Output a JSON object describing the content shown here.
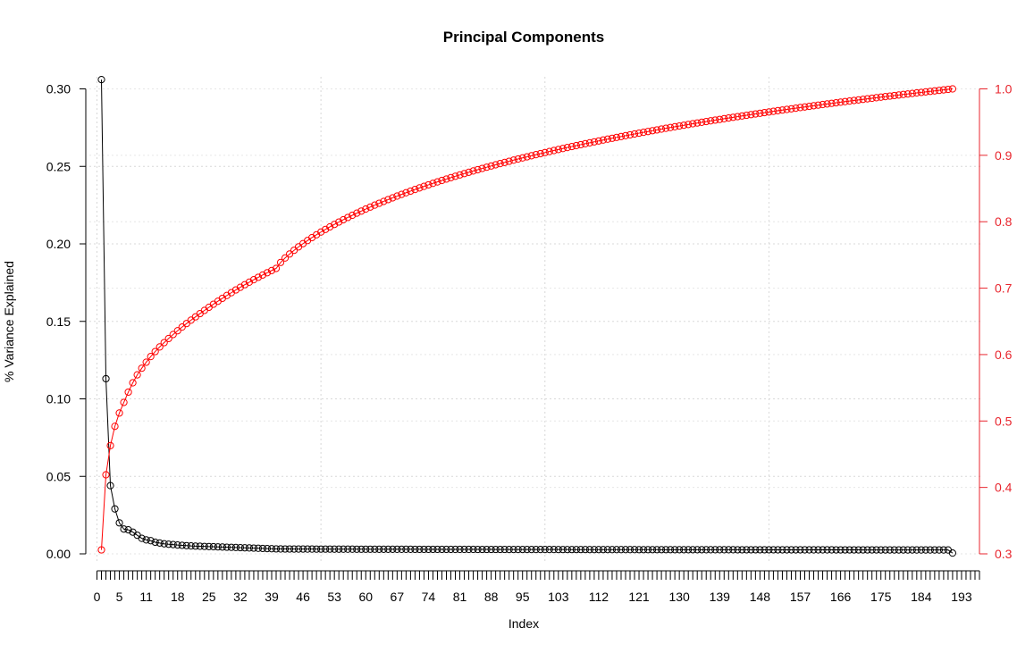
{
  "chart_data": {
    "type": "line",
    "title": "Principal Components",
    "xlabel": "Index",
    "ylabel": "% Variance Explained",
    "y2label": "",
    "xlim": [
      0,
      197
    ],
    "ylim": [
      0,
      0.3
    ],
    "y2lim": [
      0.3,
      1.0
    ],
    "n_points": 191,
    "grid": true,
    "legend": "none",
    "x_tick_labels": [
      "0",
      "5",
      "11",
      "18",
      "25",
      "32",
      "39",
      "46",
      "53",
      "60",
      "67",
      "74",
      "81",
      "88",
      "95",
      "103",
      "112",
      "121",
      "130",
      "139",
      "148",
      "157",
      "166",
      "175",
      "184",
      "193"
    ],
    "y_tick_labels": [
      "0.00",
      "0.05",
      "0.10",
      "0.15",
      "0.20",
      "0.25",
      "0.30"
    ],
    "y2_tick_labels": [
      "0.3",
      "0.4",
      "0.5",
      "0.6",
      "0.7",
      "0.8",
      "0.9",
      "1.0"
    ],
    "series": [
      {
        "axis": "left",
        "color": "#000000",
        "values": [
          0.306,
          0.113,
          0.044,
          0.029,
          0.02,
          0.016,
          0.0155,
          0.014,
          0.012,
          0.01,
          0.009,
          0.0085,
          0.0075,
          0.007,
          0.0065,
          0.0062,
          0.006,
          0.0057,
          0.0055,
          0.0053,
          0.0051,
          0.005,
          0.0049,
          0.0048,
          0.0047,
          0.0046,
          0.0045,
          0.0044,
          0.0043,
          0.0042,
          0.0041,
          0.004,
          0.0039,
          0.0038,
          0.0037,
          0.0036,
          0.0035,
          0.0034,
          0.0033,
          0.0032
        ],
        "tail_value": 0.0025,
        "last_value": 0.0005
      },
      {
        "axis": "right",
        "color": "#ff0000",
        "values": [
          0.306,
          0.419,
          0.463,
          0.492,
          0.512,
          0.528,
          0.5435,
          0.5575,
          0.5695,
          0.5795,
          0.5885,
          0.597,
          0.6045,
          0.6115,
          0.618,
          0.6242,
          0.6302,
          0.6359,
          0.6414,
          0.6467,
          0.6518,
          0.6568,
          0.6617,
          0.6665,
          0.6712,
          0.6758,
          0.6803,
          0.6847,
          0.689,
          0.6932,
          0.6973,
          0.7013,
          0.7052,
          0.709,
          0.7127,
          0.7163,
          0.7198,
          0.7232,
          0.7265,
          0.7297
        ],
        "last_value": 1.0
      }
    ]
  }
}
